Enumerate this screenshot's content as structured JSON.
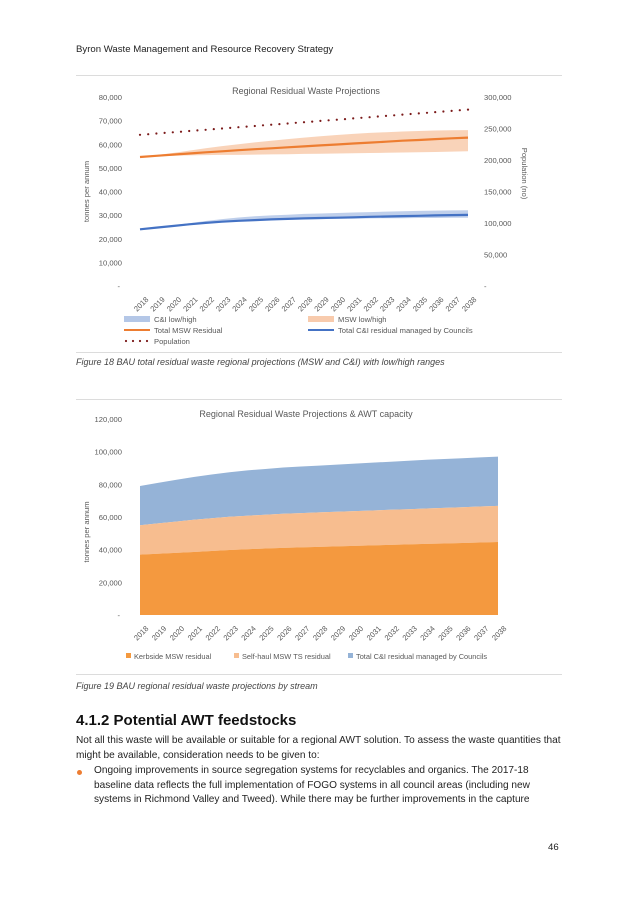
{
  "header": "Byron Waste Management and Resource Recovery Strategy",
  "page_number": "46",
  "figure18_caption": "Figure 18 BAU total residual waste regional projections (MSW and C&I) with low/high ranges",
  "figure19_caption": "Figure 19 BAU regional residual waste projections by stream",
  "section_title": "4.1.2 Potential AWT feedstocks",
  "paragraph": "Not all this waste will be available or suitable for a regional AWT solution. To assess the waste quantities that might be available, consideration needs to be given to:",
  "bullet": "Ongoing improvements in source segregation systems for recyclables and organics. The 2017-18 baseline data reflects the full implementation of FOGO systems in all council areas (including new systems in Richmond Valley and Tweed). While there may be further improvements in the capture",
  "colors": {
    "orange": "#ed7d31",
    "blue": "#4472c4",
    "dark_red": "#7b1a1a",
    "light_orange": "#f8cbad",
    "light_blue": "#b4c7e7",
    "kerb_orange": "#f4993f",
    "selfhaul": "#f7bd8f",
    "ci_blue": "#95b3d7"
  },
  "chart_data": [
    {
      "type": "line",
      "title": "Regional Residual Waste Projections",
      "ylabel": "tonnes per annum",
      "y2label": "Population (no)",
      "ylim": [
        0,
        80000
      ],
      "y2lim": [
        0,
        300000
      ],
      "yticks": [
        "-",
        "10,000",
        "20,000",
        "30,000",
        "40,000",
        "50,000",
        "60,000",
        "70,000",
        "80,000"
      ],
      "y2ticks": [
        "-",
        "50,000",
        "100,000",
        "150,000",
        "200,000",
        "250,000",
        "300,000"
      ],
      "x": [
        "2018",
        "2019",
        "2020",
        "2021",
        "2022",
        "2023",
        "2024",
        "2025",
        "2026",
        "2027",
        "2028",
        "2029",
        "2030",
        "2031",
        "2032",
        "2033",
        "2034",
        "2035",
        "2036",
        "2037",
        "2038"
      ],
      "legend_position": "bottom",
      "series": [
        {
          "name": "C&I low/high",
          "kind": "band",
          "low": [
            24000,
            24600,
            25200,
            25900,
            26500,
            27100,
            27500,
            27800,
            28000,
            28100,
            28200,
            28300,
            28400,
            28500,
            28600,
            28700,
            28700,
            28800,
            28800,
            28900,
            28900
          ],
          "high": [
            24000,
            24800,
            25700,
            26600,
            27500,
            28300,
            29000,
            29500,
            29900,
            30200,
            30500,
            30700,
            30900,
            31100,
            31300,
            31500,
            31600,
            31800,
            31900,
            32000,
            32100
          ]
        },
        {
          "name": "MSW low/high",
          "kind": "band",
          "low": [
            54600,
            54900,
            55100,
            55300,
            55400,
            55500,
            55500,
            55600,
            55700,
            55800,
            55900,
            56000,
            56100,
            56200,
            56300,
            56400,
            56500,
            56600,
            56700,
            56900,
            57000
          ],
          "high": [
            54600,
            55400,
            56300,
            57300,
            58300,
            59200,
            60000,
            60800,
            61500,
            62200,
            62800,
            63400,
            63900,
            64400,
            64800,
            65100,
            65400,
            65600,
            65800,
            65900,
            66000
          ]
        },
        {
          "name": "Total MSW Residual",
          "kind": "line",
          "values": [
            54600,
            55100,
            55600,
            56100,
            56600,
            57000,
            57500,
            57900,
            58300,
            58700,
            59100,
            59500,
            59900,
            60300,
            60700,
            61100,
            61500,
            61800,
            62200,
            62500,
            62800
          ]
        },
        {
          "name": "Total C&I residual managed by Councils",
          "kind": "line",
          "values": [
            24000,
            24700,
            25400,
            26100,
            26700,
            27200,
            27600,
            27900,
            28200,
            28400,
            28600,
            28800,
            28900,
            29100,
            29300,
            29400,
            29600,
            29700,
            29900,
            30000,
            30100
          ]
        },
        {
          "name": "Population",
          "kind": "dotted",
          "axis": "y2",
          "values": [
            240000,
            242000,
            244000,
            246000,
            248000,
            250000,
            252000,
            254000,
            256000,
            258000,
            260000,
            262000,
            264000,
            266000,
            268000,
            270000,
            272000,
            274000,
            276000,
            278000,
            280000
          ]
        }
      ]
    },
    {
      "type": "area",
      "title": "Regional Residual Waste Projections & AWT capacity",
      "ylabel": "tonnes per annum",
      "ylim": [
        0,
        120000
      ],
      "yticks": [
        "-",
        "20,000",
        "40,000",
        "60,000",
        "80,000",
        "100,000",
        "120,000"
      ],
      "x": [
        "2018",
        "2019",
        "2020",
        "2021",
        "2022",
        "2023",
        "2024",
        "2025",
        "2026",
        "2027",
        "2028",
        "2029",
        "2030",
        "2031",
        "2032",
        "2033",
        "2034",
        "2035",
        "2036",
        "2037",
        "2038"
      ],
      "legend_position": "bottom",
      "stacked": true,
      "series": [
        {
          "name": "Kerbside MSW residual",
          "values": [
            37000,
            37500,
            38000,
            38600,
            39200,
            39800,
            40300,
            40700,
            41100,
            41400,
            41700,
            42000,
            42300,
            42600,
            42900,
            43200,
            43500,
            43800,
            44100,
            44400,
            44700
          ]
        },
        {
          "name": "Self-haul MSW TS residual",
          "values": [
            18000,
            18600,
            19200,
            19700,
            20000,
            20300,
            20500,
            20700,
            20900,
            21000,
            21100,
            21200,
            21300,
            21400,
            21500,
            21600,
            21700,
            21800,
            21900,
            22000,
            22100
          ]
        },
        {
          "name": "Total C&I residual managed by Councils",
          "values": [
            24000,
            24800,
            25500,
            26200,
            26800,
            27300,
            27700,
            28000,
            28300,
            28500,
            28700,
            28900,
            29100,
            29300,
            29400,
            29600,
            29800,
            29900,
            30000,
            30100,
            30200
          ]
        }
      ]
    }
  ]
}
